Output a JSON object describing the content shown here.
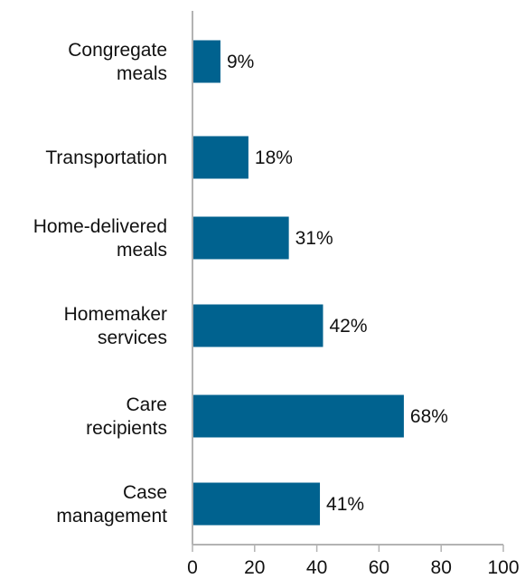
{
  "chart_data": {
    "type": "bar",
    "orientation": "horizontal",
    "categories": [
      [
        "Congregate",
        "meals"
      ],
      [
        "Transportation"
      ],
      [
        "Home-delivered",
        "meals"
      ],
      [
        "Homemaker",
        "services"
      ],
      [
        "Care",
        "recipients"
      ],
      [
        "Case",
        "management"
      ]
    ],
    "values": [
      9,
      18,
      31,
      42,
      68,
      41
    ],
    "value_labels": [
      "9%",
      "18%",
      "31%",
      "42%",
      "68%",
      "41%"
    ],
    "xlim": [
      0,
      100
    ],
    "xticks": [
      0,
      20,
      40,
      60,
      80,
      100
    ],
    "xtick_labels": [
      "0",
      "20",
      "40",
      "60",
      "80",
      "100"
    ],
    "title": "",
    "xlabel": "",
    "ylabel": "",
    "grid": false,
    "legend": "none",
    "bar_color": "#00628f",
    "axis_color": "#b3b3b3"
  }
}
